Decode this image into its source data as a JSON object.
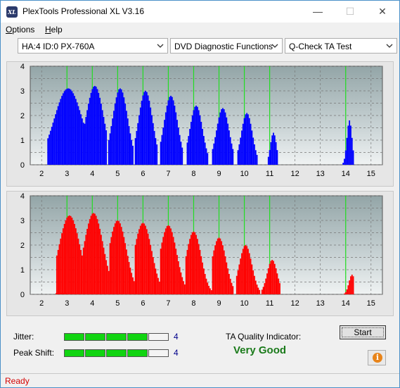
{
  "window": {
    "title": "PlexTools Professional XL V3.16",
    "icon_text": "XL",
    "controls": [
      "minimize-icon",
      "maximize-icon",
      "close-icon"
    ]
  },
  "menu": [
    {
      "label": "Options",
      "accel": "O",
      "rest": "ptions"
    },
    {
      "label": "Help",
      "accel": "H",
      "rest": "elp"
    }
  ],
  "toolbar": {
    "drive": "HA:4 ID:0  PX-760A",
    "function": "DVD Diagnostic Functions",
    "test": "Q-Check TA Test"
  },
  "chart_data": [
    {
      "type": "bar",
      "name": "top-chart",
      "color": "#0000ff",
      "background": "#c8d2d4",
      "ylim": [
        0,
        4
      ],
      "yticks": [
        "0",
        "0.5",
        "1",
        "1.5",
        "2",
        "2.5",
        "3",
        "3.5",
        "4"
      ],
      "xlim": [
        1.55,
        15.45
      ],
      "xticks": [
        "2",
        "3",
        "4",
        "5",
        "6",
        "7",
        "8",
        "9",
        "10",
        "11",
        "12",
        "13",
        "14",
        "15"
      ],
      "markers": [
        3,
        4,
        5,
        6,
        7,
        8,
        9,
        10,
        11,
        14
      ],
      "peaks": [
        {
          "start": 2.2,
          "end": 3.65,
          "center": 3.05,
          "peak": 3.1,
          "width": 0.55
        },
        {
          "start": 3.55,
          "end": 4.55,
          "center": 4.1,
          "peak": 3.2,
          "width": 0.35
        },
        {
          "start": 4.6,
          "end": 5.6,
          "center": 5.1,
          "peak": 3.1,
          "width": 0.3
        },
        {
          "start": 5.65,
          "end": 6.55,
          "center": 6.1,
          "peak": 3.0,
          "width": 0.28
        },
        {
          "start": 6.65,
          "end": 7.55,
          "center": 7.1,
          "peak": 2.8,
          "width": 0.27
        },
        {
          "start": 7.7,
          "end": 8.55,
          "center": 8.1,
          "peak": 2.4,
          "width": 0.25
        },
        {
          "start": 8.7,
          "end": 9.55,
          "center": 9.15,
          "peak": 2.3,
          "width": 0.25
        },
        {
          "start": 9.75,
          "end": 10.55,
          "center": 10.1,
          "peak": 2.1,
          "width": 0.22
        },
        {
          "start": 10.95,
          "end": 11.35,
          "center": 11.15,
          "peak": 1.3,
          "width": 0.12
        },
        {
          "start": 13.9,
          "end": 14.35,
          "center": 14.15,
          "peak": 1.8,
          "width": 0.1
        }
      ]
    },
    {
      "type": "bar",
      "name": "bottom-chart",
      "color": "#ff0000",
      "background": "#c8d2d4",
      "ylim": [
        0,
        4
      ],
      "yticks": [
        "0",
        "0.5",
        "1",
        "1.5",
        "2",
        "2.5",
        "3",
        "3.5",
        "4"
      ],
      "xlim": [
        1.55,
        15.45
      ],
      "xticks": [
        "2",
        "3",
        "4",
        "5",
        "6",
        "7",
        "8",
        "9",
        "10",
        "11",
        "12",
        "13",
        "14",
        "15"
      ],
      "markers": [
        3,
        4,
        5,
        6,
        7,
        8,
        9,
        10,
        11,
        14
      ],
      "peaks": [
        {
          "start": 2.55,
          "end": 3.85,
          "center": 3.1,
          "peak": 3.2,
          "width": 0.42
        },
        {
          "start": 3.6,
          "end": 4.85,
          "center": 4.05,
          "peak": 3.3,
          "width": 0.38
        },
        {
          "start": 4.65,
          "end": 5.85,
          "center": 5.0,
          "peak": 3.0,
          "width": 0.35
        },
        {
          "start": 5.65,
          "end": 6.85,
          "center": 6.0,
          "peak": 2.9,
          "width": 0.35
        },
        {
          "start": 6.65,
          "end": 7.8,
          "center": 7.0,
          "peak": 2.8,
          "width": 0.33
        },
        {
          "start": 7.65,
          "end": 8.7,
          "center": 8.0,
          "peak": 2.55,
          "width": 0.3
        },
        {
          "start": 8.7,
          "end": 9.6,
          "center": 9.0,
          "peak": 2.3,
          "width": 0.28
        },
        {
          "start": 9.7,
          "end": 10.65,
          "center": 10.05,
          "peak": 2.0,
          "width": 0.25
        },
        {
          "start": 10.7,
          "end": 11.45,
          "center": 11.1,
          "peak": 1.4,
          "width": 0.2
        },
        {
          "start": 13.9,
          "end": 14.35,
          "center": 14.25,
          "peak": 0.8,
          "width": 0.12
        }
      ]
    }
  ],
  "metrics": {
    "jitter": {
      "label": "Jitter:",
      "value": "4",
      "level": 4,
      "segments": 5
    },
    "peak_shift": {
      "label": "Peak Shift:",
      "value": "4",
      "level": 4,
      "segments": 5
    }
  },
  "ta_quality": {
    "label": "TA Quality Indicator:",
    "value": "Very Good",
    "color": "#1a7a1a"
  },
  "buttons": {
    "start": "Start",
    "info_icon": "i"
  },
  "status": {
    "text": "Ready",
    "color": "#d40000"
  }
}
